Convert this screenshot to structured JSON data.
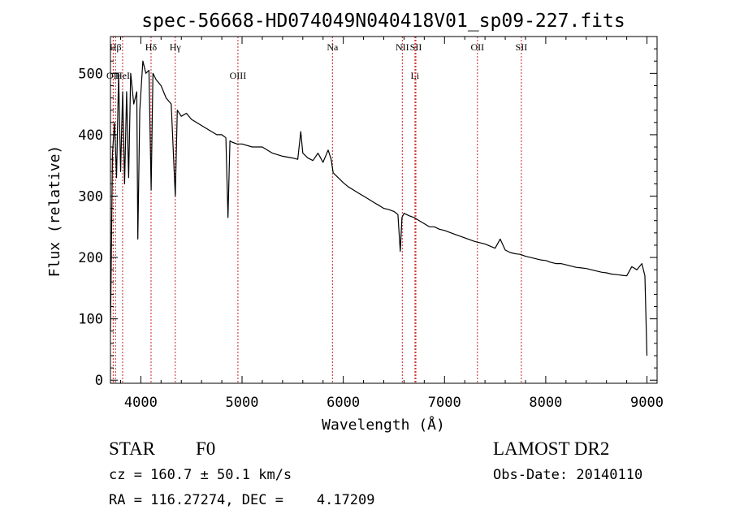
{
  "chart_data": {
    "type": "line",
    "title": "spec-56668-HD074049N040418V01_sp09-227.fits",
    "xlabel": "Wavelength (Å)",
    "ylabel": "Flux (relative)",
    "xlim": [
      3700,
      9100
    ],
    "ylim": [
      -5,
      560
    ],
    "grid": false,
    "xticks": [
      4000,
      5000,
      6000,
      7000,
      8000,
      9000
    ],
    "yticks": [
      0,
      100,
      200,
      300,
      400,
      500
    ],
    "line_color": "#000000",
    "marker_color": "#cc2222",
    "series": [
      {
        "x": [
          3700,
          3720,
          3740,
          3760,
          3780,
          3800,
          3820,
          3840,
          3860,
          3880,
          3900,
          3930,
          3960,
          3970,
          3990,
          4020,
          4050,
          4080,
          4102,
          4120,
          4150,
          4200,
          4250,
          4300,
          4340,
          4360,
          4400,
          4450,
          4500,
          4550,
          4600,
          4650,
          4700,
          4750,
          4800,
          4840,
          4861,
          4880,
          4900,
          4950,
          5000,
          5100,
          5200,
          5300,
          5400,
          5500,
          5550,
          5580,
          5600,
          5650,
          5700,
          5750,
          5800,
          5850,
          5880,
          5900,
          5950,
          6000,
          6050,
          6100,
          6150,
          6200,
          6250,
          6300,
          6350,
          6400,
          6450,
          6500,
          6540,
          6563,
          6580,
          6600,
          6650,
          6700,
          6750,
          6800,
          6850,
          6900,
          6950,
          7000,
          7100,
          7200,
          7300,
          7400,
          7500,
          7550,
          7600,
          7650,
          7700,
          7750,
          7800,
          7850,
          7900,
          7950,
          8000,
          8050,
          8100,
          8150,
          8200,
          8250,
          8300,
          8350,
          8400,
          8450,
          8500,
          8550,
          8600,
          8650,
          8700,
          8750,
          8800,
          8850,
          8900,
          8950,
          8980,
          9000
        ],
        "y": [
          80,
          370,
          420,
          330,
          500,
          340,
          470,
          320,
          470,
          330,
          500,
          450,
          470,
          230,
          440,
          520,
          500,
          505,
          310,
          500,
          490,
          480,
          460,
          450,
          300,
          440,
          430,
          435,
          425,
          420,
          415,
          410,
          405,
          400,
          400,
          395,
          265,
          390,
          388,
          385,
          385,
          380,
          380,
          370,
          365,
          362,
          360,
          405,
          370,
          362,
          358,
          370,
          355,
          375,
          360,
          338,
          330,
          322,
          315,
          310,
          305,
          300,
          295,
          290,
          285,
          280,
          278,
          275,
          270,
          210,
          265,
          272,
          268,
          265,
          260,
          255,
          250,
          250,
          246,
          244,
          238,
          232,
          226,
          222,
          215,
          230,
          212,
          208,
          206,
          205,
          202,
          200,
          198,
          196,
          195,
          192,
          190,
          190,
          188,
          186,
          184,
          183,
          182,
          180,
          178,
          176,
          175,
          173,
          172,
          171,
          170,
          185,
          180,
          190,
          170,
          40
        ]
      }
    ],
    "line_markers": [
      {
        "label": "Hβ",
        "x": 3750,
        "label_row": 1
      },
      {
        "label": "OII",
        "x": 3727,
        "label_row": 2
      },
      {
        "label": "HeI",
        "x": 3820,
        "label_row": 2
      },
      {
        "label": "Hδ",
        "x": 4101,
        "label_row": 1
      },
      {
        "label": "Hγ",
        "x": 4340,
        "label_row": 1
      },
      {
        "label": "OIII",
        "x": 4959,
        "label_row": 2
      },
      {
        "label": "Na",
        "x": 5893,
        "label_row": 1
      },
      {
        "label": "NII",
        "x": 6583,
        "label_row": 1
      },
      {
        "label": "SII",
        "x": 6717,
        "label_row": 1
      },
      {
        "label": "Li",
        "x": 6708,
        "label_row": 2
      },
      {
        "label": "OII",
        "x": 7325,
        "label_row": 1
      },
      {
        "label": "SII",
        "x": 7759,
        "label_row": 1
      }
    ]
  },
  "footer": {
    "class_label": "STAR",
    "subclass_label": "F0",
    "survey": "LAMOST DR2",
    "cz": "cz = 160.7 ± 50.1 km/s",
    "obs_date": "Obs-Date: 20140110",
    "radec": "RA = 116.27274, DEC =    4.17209"
  }
}
